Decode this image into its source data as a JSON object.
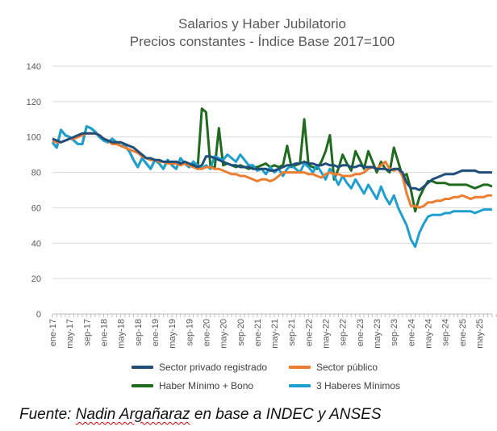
{
  "chart_data": {
    "type": "line",
    "title": "Salarios y Haber Jubilatorio",
    "subtitle": "Precios constantes - Índice  Base 2017=100",
    "xlabel": "",
    "ylabel": "",
    "ylim": [
      0,
      140
    ],
    "yticks": [
      0,
      20,
      40,
      60,
      80,
      100,
      120,
      140
    ],
    "grid": "horizontal",
    "legend_position": "bottom",
    "x_start": "ene-17",
    "x_end": "ago-25",
    "x_frequency": "monthly",
    "xtick_labels": [
      "ene-17",
      "may-17",
      "sep-17",
      "ene-18",
      "may-18",
      "sep-18",
      "ene-19",
      "may-19",
      "sep-19",
      "ene-20",
      "may-20",
      "sep-20",
      "ene-21",
      "may-21",
      "sep-21",
      "ene-22",
      "may-22",
      "sep-22",
      "ene-23",
      "may-23",
      "sep-23",
      "ene-24",
      "may-24",
      "sep-24",
      "ene-25",
      "may-25"
    ],
    "series": [
      {
        "name": "Sector privado registrado",
        "color": "#1f4e79",
        "values": [
          99,
          98,
          97,
          98,
          99,
          100,
          101,
          102,
          102,
          102,
          102,
          101,
          99,
          98,
          97,
          97,
          97,
          96,
          95,
          94,
          92,
          90,
          88,
          88,
          87,
          87,
          86,
          86,
          86,
          86,
          85,
          86,
          85,
          84,
          83,
          84,
          89,
          89,
          88,
          87,
          86,
          85,
          84,
          84,
          83,
          83,
          83,
          82,
          82,
          82,
          82,
          81,
          81,
          82,
          83,
          84,
          84,
          85,
          85,
          86,
          85,
          85,
          84,
          84,
          85,
          84,
          84,
          83,
          84,
          84,
          83,
          83,
          84,
          83,
          83,
          83,
          82,
          82,
          82,
          81,
          82,
          82,
          80,
          74,
          71,
          71,
          70,
          72,
          74,
          76,
          77,
          78,
          79,
          79,
          79,
          80,
          81,
          81,
          81,
          81,
          80,
          80,
          80,
          80
        ]
      },
      {
        "name": "Sector público",
        "color": "#ed7d31",
        "values": [
          98,
          97,
          97,
          98,
          99,
          99,
          100,
          101,
          102,
          102,
          102,
          101,
          99,
          98,
          96,
          96,
          95,
          94,
          93,
          92,
          91,
          89,
          88,
          87,
          87,
          86,
          86,
          85,
          85,
          85,
          84,
          85,
          84,
          83,
          82,
          82,
          83,
          83,
          82,
          82,
          81,
          80,
          79,
          79,
          78,
          78,
          77,
          76,
          75,
          76,
          76,
          75,
          76,
          78,
          80,
          80,
          80,
          80,
          80,
          80,
          79,
          79,
          78,
          77,
          79,
          80,
          79,
          79,
          78,
          78,
          78,
          79,
          79,
          80,
          82,
          83,
          82,
          84,
          86,
          82,
          81,
          82,
          78,
          68,
          61,
          61,
          60,
          61,
          63,
          63,
          64,
          64,
          65,
          65,
          66,
          66,
          67,
          66,
          65,
          66,
          66,
          66,
          67,
          67
        ]
      },
      {
        "name": "Haber Mínimo + Bono",
        "color": "#1e6b1e",
        "values": [
          97,
          94,
          104,
          101,
          100,
          98,
          96,
          96,
          106,
          105,
          103,
          100,
          98,
          97,
          99,
          97,
          95,
          95,
          92,
          87,
          83,
          88,
          85,
          82,
          87,
          85,
          82,
          87,
          84,
          82,
          88,
          85,
          83,
          86,
          82,
          116,
          114,
          84,
          82,
          105,
          84,
          85,
          84,
          83,
          84,
          83,
          82,
          83,
          83,
          84,
          85,
          83,
          84,
          83,
          84,
          95,
          83,
          84,
          85,
          110,
          84,
          83,
          82,
          86,
          92,
          101,
          76,
          82,
          90,
          85,
          81,
          92,
          87,
          82,
          92,
          86,
          80,
          86,
          82,
          80,
          94,
          86,
          78,
          79,
          70,
          58,
          66,
          71,
          75,
          75,
          74,
          74,
          74,
          73,
          73,
          73,
          73,
          73,
          72,
          71,
          72,
          73,
          73,
          72
        ]
      },
      {
        "name": "3 Haberes Mínimos",
        "color": "#1e9fd0",
        "values": [
          97,
          94,
          104,
          101,
          100,
          98,
          96,
          96,
          106,
          105,
          103,
          100,
          98,
          97,
          99,
          97,
          95,
          95,
          92,
          87,
          83,
          88,
          85,
          82,
          87,
          85,
          82,
          87,
          84,
          82,
          88,
          85,
          83,
          86,
          84,
          82,
          84,
          82,
          89,
          88,
          87,
          90,
          88,
          86,
          90,
          87,
          84,
          84,
          81,
          82,
          79,
          83,
          80,
          82,
          78,
          82,
          84,
          82,
          80,
          85,
          83,
          80,
          84,
          80,
          76,
          82,
          78,
          73,
          78,
          74,
          71,
          76,
          72,
          68,
          73,
          69,
          65,
          72,
          66,
          62,
          67,
          60,
          55,
          50,
          42,
          38,
          46,
          51,
          55,
          56,
          56,
          56,
          57,
          57,
          58,
          58,
          58,
          58,
          58,
          57,
          58,
          59,
          59,
          59
        ]
      }
    ]
  },
  "source": {
    "prefix": "Fuente: ",
    "author": "Nadin Argañaraz",
    "suffix": " en base a INDEC y ANSES"
  }
}
